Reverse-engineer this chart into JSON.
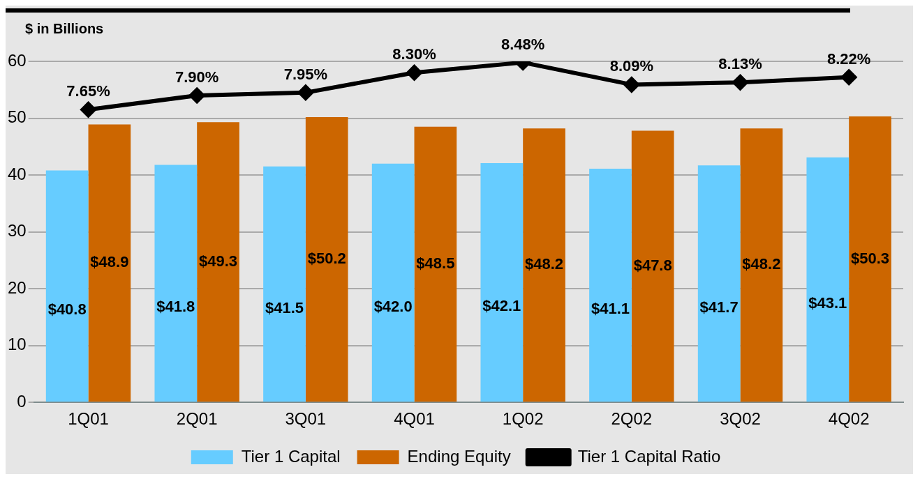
{
  "chart_data": {
    "type": "bar",
    "ylabel": "$ in Billions",
    "categories": [
      "1Q01",
      "2Q01",
      "3Q01",
      "4Q01",
      "1Q02",
      "2Q02",
      "3Q02",
      "4Q02"
    ],
    "series": [
      {
        "name": "Tier 1 Capital",
        "color": "#66ccff",
        "values": [
          40.8,
          41.8,
          41.5,
          42.0,
          42.1,
          41.1,
          41.7,
          43.1
        ],
        "value_labels": [
          "$40.8",
          "$41.8",
          "$41.5",
          "$42.0",
          "$42.1",
          "$41.1",
          "$41.7",
          "$43.1"
        ]
      },
      {
        "name": "Ending Equity",
        "color": "#cc6600",
        "values": [
          48.9,
          49.3,
          50.2,
          48.5,
          48.2,
          47.8,
          48.2,
          50.3
        ],
        "value_labels": [
          "$48.9",
          "$49.3",
          "$50.2",
          "$48.5",
          "$48.2",
          "$47.8",
          "$48.2",
          "$50.3"
        ]
      },
      {
        "name": "Tier 1 Capital Ratio",
        "type": "line",
        "axis": "y2",
        "color": "#000000",
        "values": [
          7.65,
          7.9,
          7.95,
          8.3,
          8.48,
          8.09,
          8.13,
          8.22
        ],
        "value_labels": [
          "7.65%",
          "7.90%",
          "7.95%",
          "8.30%",
          "8.48%",
          "8.09%",
          "8.13%",
          "8.22%"
        ]
      }
    ],
    "ylim": [
      0,
      60
    ],
    "yticks": [
      0,
      10,
      20,
      30,
      40,
      50,
      60
    ],
    "y2lim": [
      2.5,
      8.5
    ],
    "grid": "y",
    "legend": "bottom",
    "marker": "diamond",
    "line_style": "solid"
  }
}
